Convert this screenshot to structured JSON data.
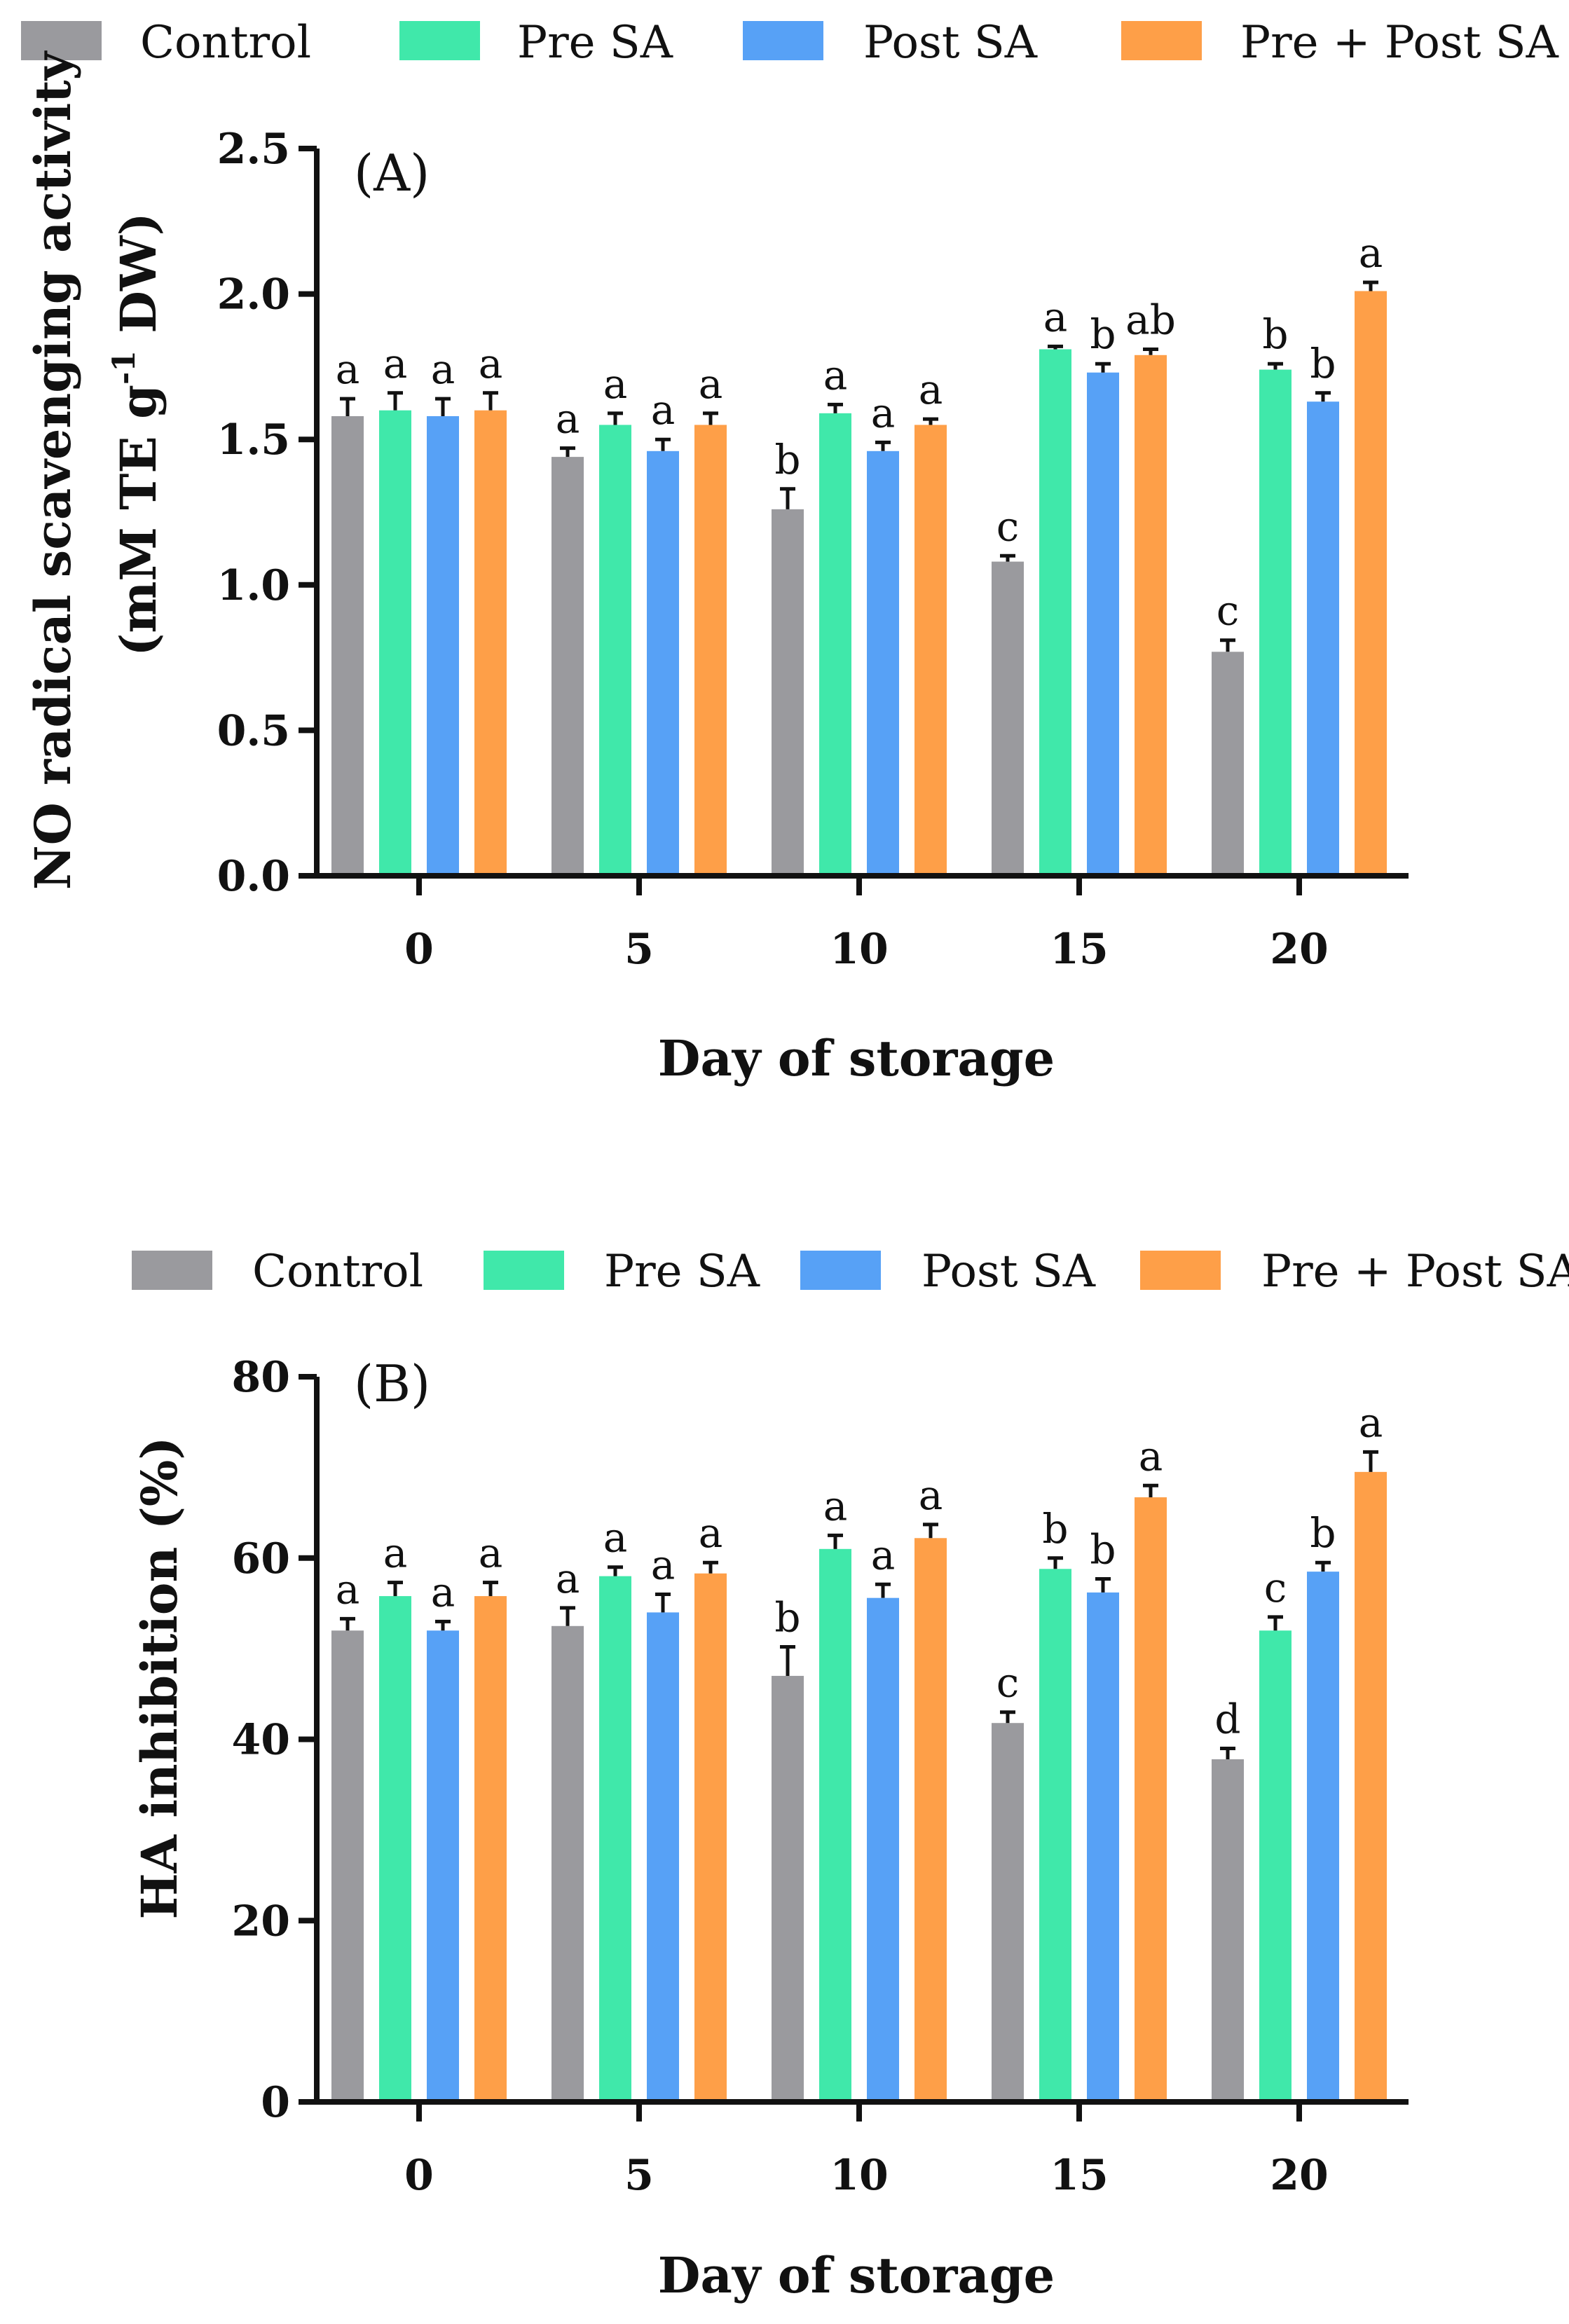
{
  "series_style": [
    {
      "name": "Control",
      "color": "#9a9a9e"
    },
    {
      "name": "Pre SA",
      "color": "#40e8aa"
    },
    {
      "name": "Post SA",
      "color": "#57a1f6"
    },
    {
      "name": "Pre + Post SA",
      "color": "#fe9f48"
    }
  ],
  "chart_data": [
    {
      "type": "bar",
      "panel_label": "(A)",
      "title": "",
      "categories": [
        "0",
        "5",
        "10",
        "15",
        "20"
      ],
      "xlabel": "Day of storage",
      "ylabel_main": "NO radical scavenging activity",
      "ylabel_unit_prefix": "(mM TE g",
      "ylabel_unit_sup": "-1",
      "ylabel_unit_suffix": " DW)",
      "ylim": [
        0,
        2.5
      ],
      "yticks": [
        0.0,
        0.5,
        1.0,
        1.5,
        2.0,
        2.5
      ],
      "ytick_labels": [
        "0.0",
        "0.5",
        "1.0",
        "1.5",
        "2.0",
        "2.5"
      ],
      "legend": [
        "Control",
        "Pre SA",
        "Post SA",
        "Pre + Post SA"
      ],
      "legend_position": "top",
      "series": [
        {
          "name": "Control",
          "values": [
            1.58,
            1.44,
            1.26,
            1.08,
            0.77
          ],
          "errors": [
            0.06,
            0.03,
            0.07,
            0.02,
            0.04
          ],
          "letters": [
            "a",
            "a",
            "b",
            "c",
            "c"
          ]
        },
        {
          "name": "Pre SA",
          "values": [
            1.6,
            1.55,
            1.59,
            1.81,
            1.74
          ],
          "errors": [
            0.06,
            0.04,
            0.03,
            0.01,
            0.02
          ],
          "letters": [
            "a",
            "a",
            "a",
            "a",
            "b"
          ]
        },
        {
          "name": "Post SA",
          "values": [
            1.58,
            1.46,
            1.46,
            1.73,
            1.63
          ],
          "errors": [
            0.06,
            0.04,
            0.03,
            0.03,
            0.03
          ],
          "letters": [
            "a",
            "a",
            "a",
            "b",
            "b"
          ]
        },
        {
          "name": "Pre + Post SA",
          "values": [
            1.6,
            1.55,
            1.55,
            1.79,
            2.01
          ],
          "errors": [
            0.06,
            0.04,
            0.02,
            0.02,
            0.03
          ],
          "letters": [
            "a",
            "a",
            "a",
            "ab",
            "a"
          ]
        }
      ]
    },
    {
      "type": "bar",
      "panel_label": "(B)",
      "title": "",
      "categories": [
        "0",
        "5",
        "10",
        "15",
        "20"
      ],
      "xlabel": "Day of storage",
      "ylabel_main": "HA inhibition (%)",
      "ylim": [
        0,
        80
      ],
      "yticks": [
        0,
        20,
        40,
        60,
        80
      ],
      "ytick_labels": [
        "0",
        "20",
        "40",
        "60",
        "80"
      ],
      "legend": [
        "Control",
        "Pre SA",
        "Post SA",
        "Pre + Post SA"
      ],
      "legend_position": "top",
      "series": [
        {
          "name": "Control",
          "values": [
            52,
            52.5,
            47,
            41.8,
            37.8
          ],
          "errors": [
            1.3,
            2.0,
            3.2,
            1.2,
            1.2
          ],
          "letters": [
            "a",
            "a",
            "b",
            "c",
            "d"
          ]
        },
        {
          "name": "Pre SA",
          "values": [
            55.8,
            58,
            61,
            58.8,
            52
          ],
          "errors": [
            1.5,
            1.0,
            1.5,
            1.2,
            1.5
          ],
          "letters": [
            "a",
            "a",
            "a",
            "b",
            "c"
          ]
        },
        {
          "name": "Post SA",
          "values": [
            52,
            54,
            55.6,
            56.2,
            58.5
          ],
          "errors": [
            1.0,
            2.0,
            1.5,
            1.5,
            1.0
          ],
          "letters": [
            "a",
            "a",
            "a",
            "b",
            "b"
          ]
        },
        {
          "name": "Pre + Post SA",
          "values": [
            55.8,
            58.3,
            62.2,
            66.7,
            69.5
          ],
          "errors": [
            1.5,
            1.2,
            1.5,
            1.3,
            2.2
          ],
          "letters": [
            "a",
            "a",
            "a",
            "a",
            "a"
          ]
        }
      ]
    }
  ]
}
